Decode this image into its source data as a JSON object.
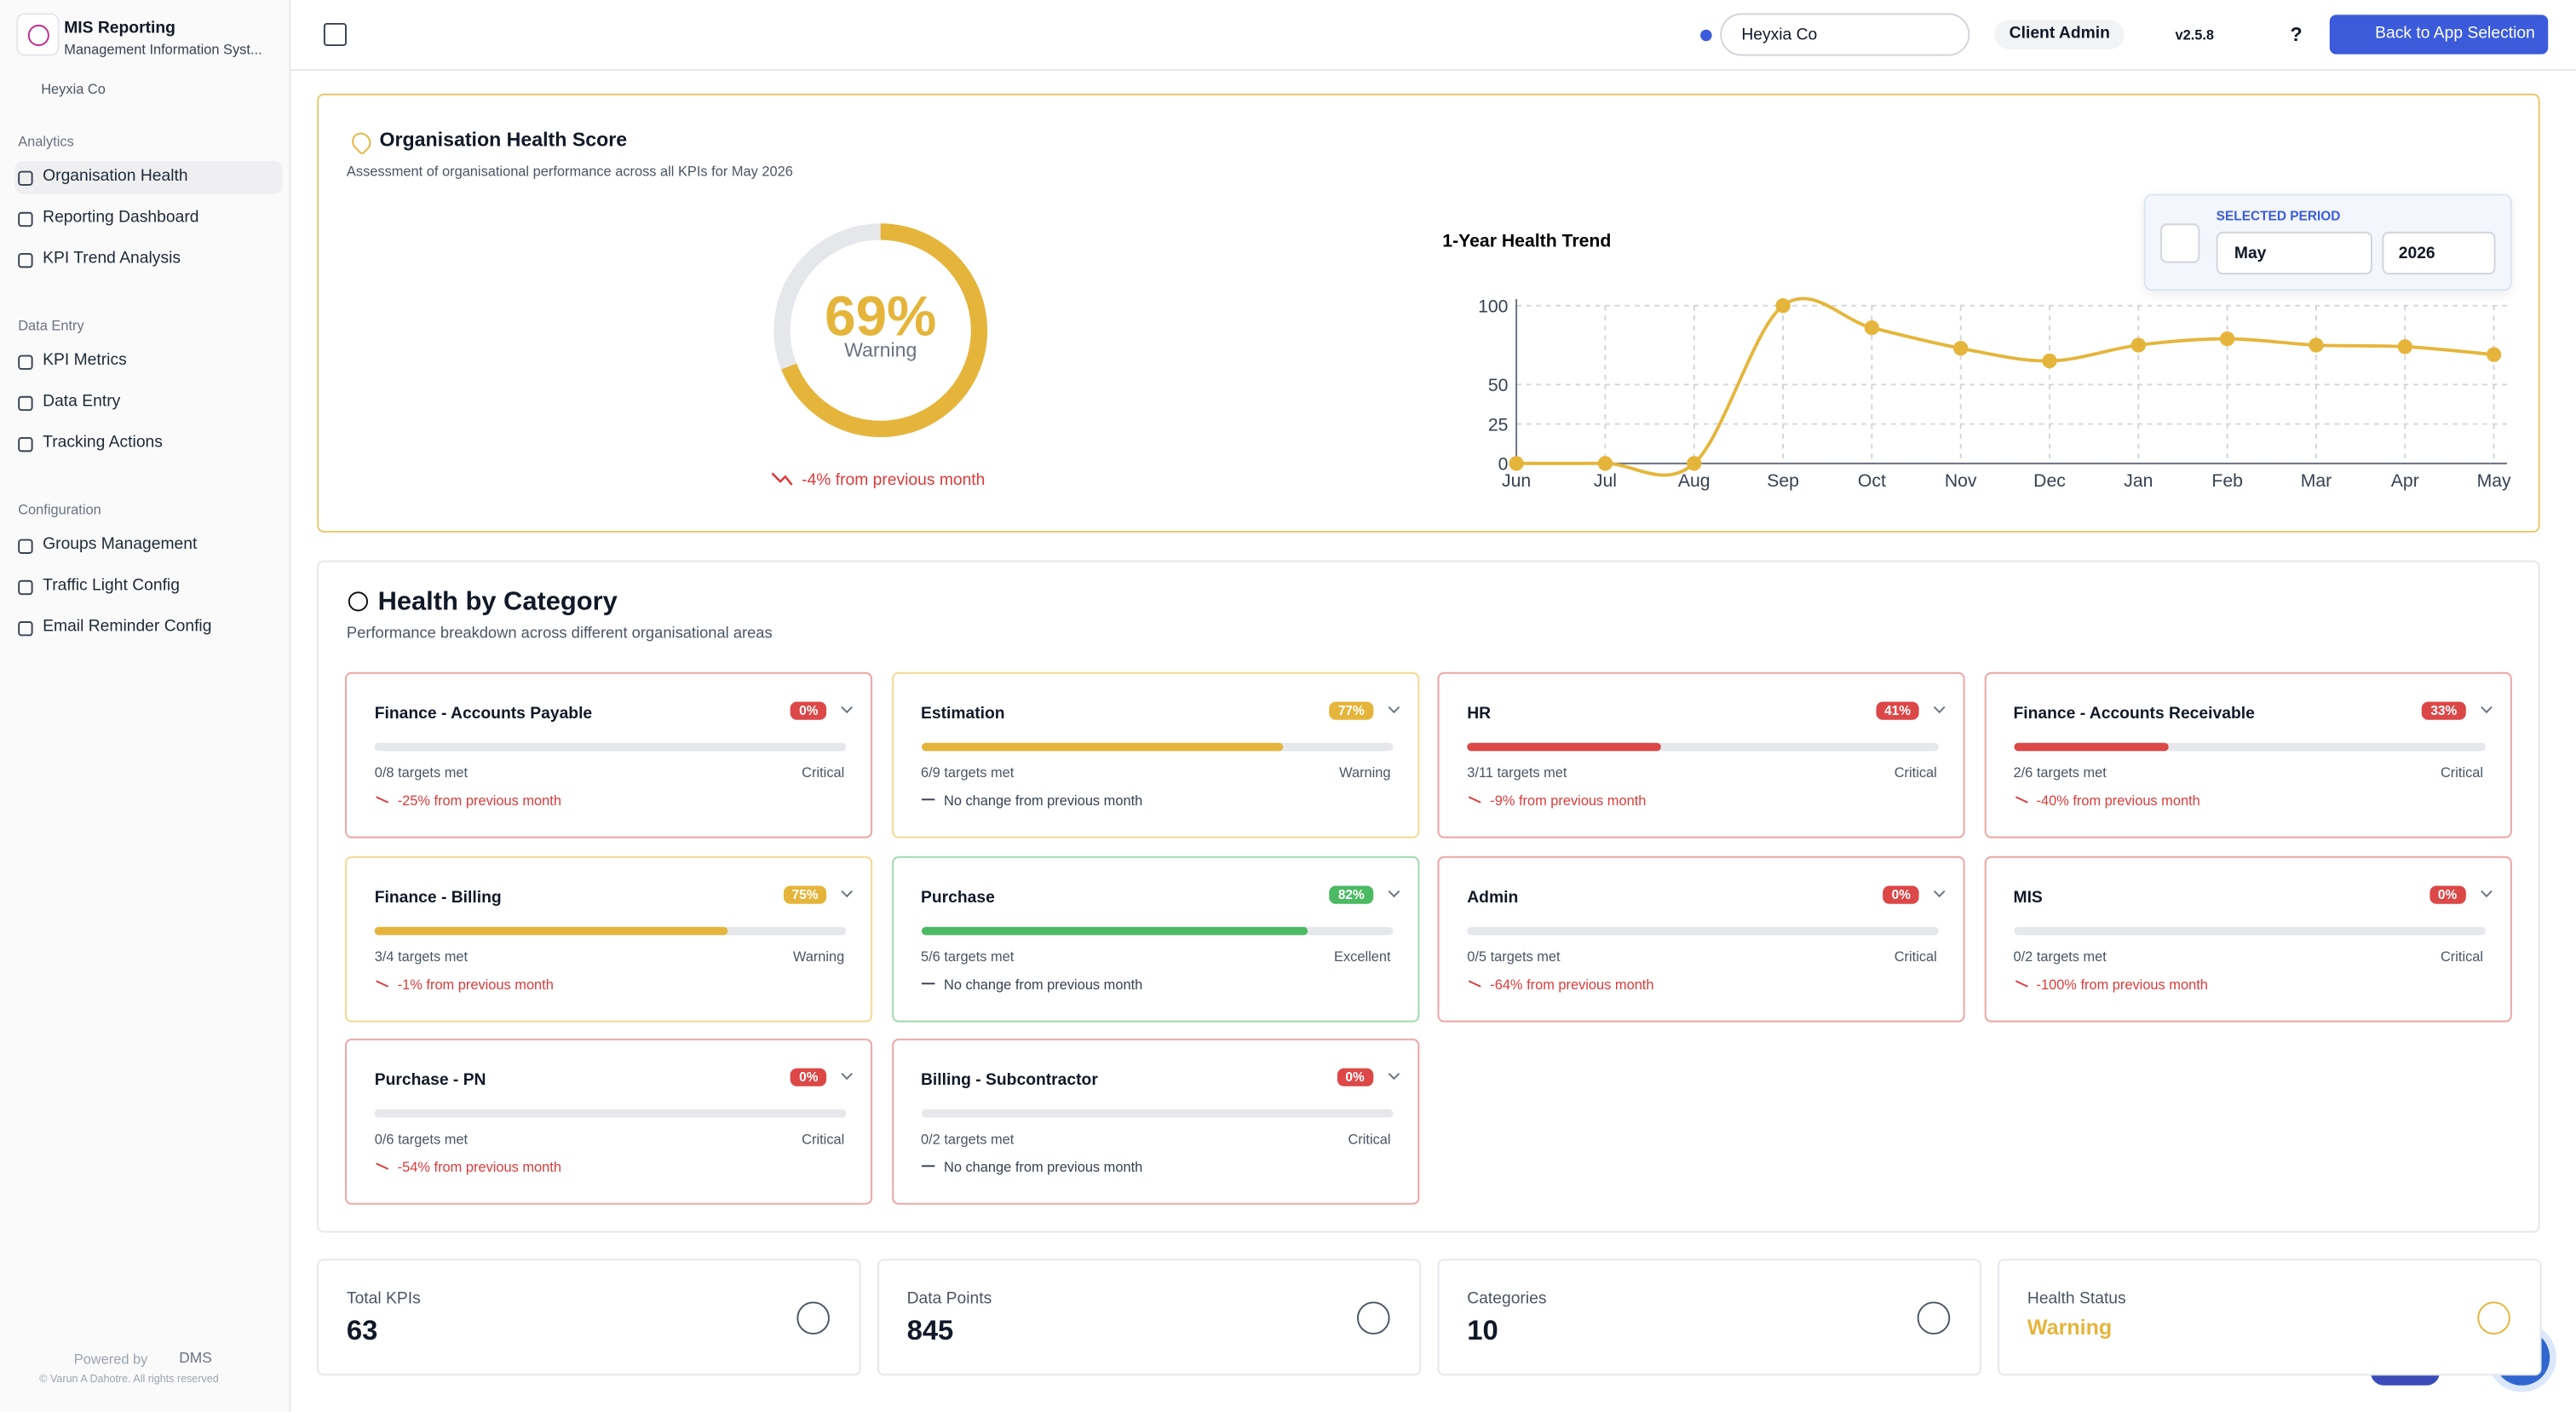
{
  "sidebar": {
    "title": "MIS Reporting",
    "subtitle": "Management Information Syst...",
    "org": "Heyxia Co",
    "sections": [
      {
        "heading": "Analytics",
        "items": [
          {
            "label": "Organisation Health",
            "active": true
          },
          {
            "label": "Reporting Dashboard"
          },
          {
            "label": "KPI Trend Analysis"
          }
        ]
      },
      {
        "heading": "Data Entry",
        "items": [
          {
            "label": "KPI Metrics"
          },
          {
            "label": "Data Entry"
          },
          {
            "label": "Tracking Actions"
          }
        ]
      },
      {
        "heading": "Configuration",
        "items": [
          {
            "label": "Groups Management"
          },
          {
            "label": "Traffic Light Config"
          },
          {
            "label": "Email Reminder Config"
          }
        ]
      }
    ],
    "powered_by": "Powered by",
    "brand": "DMS",
    "copyright": "© Varun A Dahotre. All rights reserved"
  },
  "topbar": {
    "org_select": "Heyxia Co",
    "role": "Client Admin",
    "version": "v2.5.8",
    "help": "?",
    "back_button": "Back to App Selection"
  },
  "health": {
    "title": "Organisation Health Score",
    "subtitle": "Assessment of organisational performance across all KPIs for May 2026",
    "score": {
      "value": 69,
      "label": "69%"
    },
    "status": "Warning",
    "change": "-4% from previous month",
    "period": {
      "heading": "SELECTED PERIOD",
      "month": "May",
      "year": "2026"
    },
    "trend": {
      "type": "line",
      "title": "1-Year Health Trend",
      "categories": [
        "Jun",
        "Jul",
        "Aug",
        "Sep",
        "Oct",
        "Nov",
        "Dec",
        "Jan",
        "Feb",
        "Mar",
        "Apr",
        "May"
      ],
      "values": [
        0,
        0,
        0,
        100,
        86,
        73,
        65,
        75,
        79,
        75,
        74,
        69
      ],
      "color": "#e5b53b",
      "ylim": [
        0,
        100
      ],
      "yticks": [
        0,
        25,
        50,
        100
      ],
      "grid": true
    }
  },
  "categories": {
    "title": "Health by Category",
    "subtitle": "Performance breakdown across different organisational areas",
    "cards": [
      {
        "name": "Finance - Accounts Payable",
        "value": 0,
        "value_label": "0%",
        "targets": "0/8 targets met",
        "status": "Critical",
        "change": "-25% from previous month",
        "trend": "down"
      },
      {
        "name": "Estimation",
        "value": 77,
        "value_label": "77%",
        "targets": "6/9 targets met",
        "status": "Warning",
        "change": "No change from previous month",
        "trend": "flat"
      },
      {
        "name": "HR",
        "value": 41,
        "value_label": "41%",
        "targets": "3/11 targets met",
        "status": "Critical",
        "change": "-9% from previous month",
        "trend": "down"
      },
      {
        "name": "Finance - Accounts Receivable",
        "value": 33,
        "value_label": "33%",
        "targets": "2/6 targets met",
        "status": "Critical",
        "change": "-40% from previous month",
        "trend": "down"
      },
      {
        "name": "Finance - Billing",
        "value": 75,
        "value_label": "75%",
        "targets": "3/4 targets met",
        "status": "Warning",
        "change": "-1% from previous month",
        "trend": "down"
      },
      {
        "name": "Purchase",
        "value": 82,
        "value_label": "82%",
        "targets": "5/6 targets met",
        "status": "Excellent",
        "change": "No change from previous month",
        "trend": "flat"
      },
      {
        "name": "Admin",
        "value": 0,
        "value_label": "0%",
        "targets": "0/5 targets met",
        "status": "Critical",
        "change": "-64% from previous month",
        "trend": "down"
      },
      {
        "name": "MIS",
        "value": 0,
        "value_label": "0%",
        "targets": "0/2 targets met",
        "status": "Critical",
        "change": "-100% from previous month",
        "trend": "down"
      },
      {
        "name": "Purchase - PN",
        "value": 0,
        "value_label": "0%",
        "targets": "0/6 targets met",
        "status": "Critical",
        "change": "-54% from previous month",
        "trend": "down"
      },
      {
        "name": "Billing - Subcontractor",
        "value": 0,
        "value_label": "0%",
        "targets": "0/2 targets met",
        "status": "Critical",
        "change": "No change from previous month",
        "trend": "flat"
      }
    ]
  },
  "stats": [
    {
      "label": "Total KPIs",
      "value": 63
    },
    {
      "label": "Data Points",
      "value": 845
    },
    {
      "label": "Categories",
      "value": 10
    },
    {
      "label": "Health Status",
      "value": "Warning"
    }
  ]
}
